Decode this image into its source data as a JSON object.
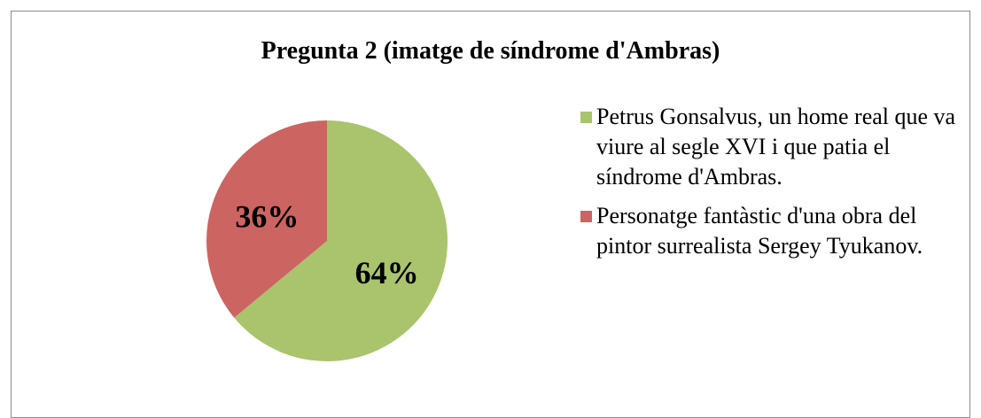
{
  "chart_data": {
    "type": "pie",
    "title": "Pregunta 2 (imatge de síndrome d'Ambras)",
    "categories": [
      "Petrus Gonsalvus, un home real que va viure al segle XVI i que patia el síndrome d'Ambras.",
      "Personatge fantàstic d'una obra del pintor surrealista Sergey Tyukanov."
    ],
    "values": [
      64,
      36
    ],
    "value_labels": [
      "64%",
      "36%"
    ],
    "colors": [
      "#a9c46c",
      "#cc6461"
    ],
    "legend": "right"
  }
}
